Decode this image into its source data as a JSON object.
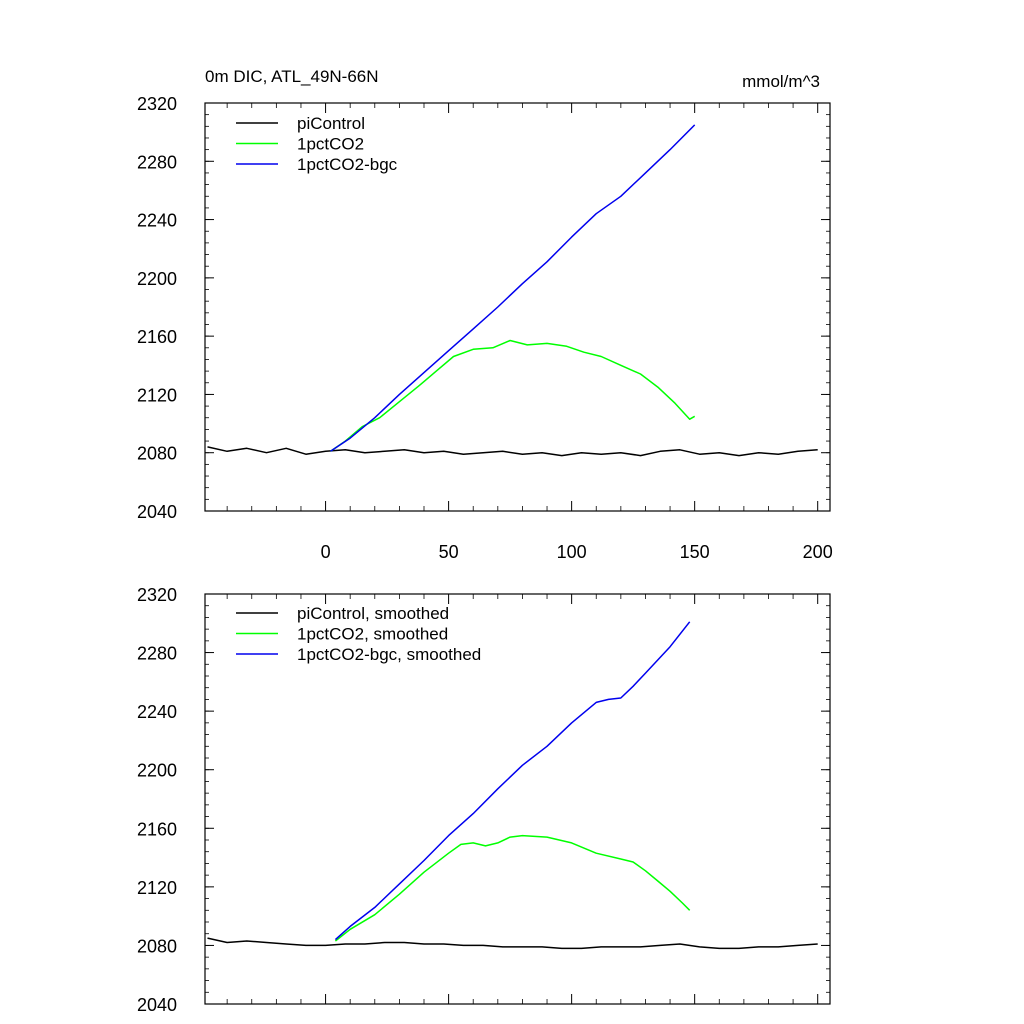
{
  "chart_data": [
    {
      "type": "line",
      "title": "0m DIC, ATL_49N-66N",
      "units": "mmol/m^3",
      "xlim": [
        -49,
        205
      ],
      "ylim": [
        2040,
        2320
      ],
      "yticks": [
        "2040",
        "2080",
        "2120",
        "2160",
        "2200",
        "2240",
        "2280",
        "2320"
      ],
      "xticks": [
        "0",
        "50",
        "100",
        "150",
        "200"
      ],
      "legend_position": "top-left",
      "grid": false,
      "series": [
        {
          "name": "piControl",
          "color": "#000000",
          "x": [
            -48,
            -40,
            -32,
            -24,
            -16,
            -8,
            0,
            8,
            16,
            24,
            32,
            40,
            48,
            56,
            64,
            72,
            80,
            88,
            96,
            104,
            112,
            120,
            128,
            136,
            144,
            152,
            160,
            168,
            176,
            184,
            192,
            200
          ],
          "y": [
            2084,
            2081,
            2083,
            2080,
            2083,
            2079,
            2081,
            2082,
            2080,
            2081,
            2082,
            2080,
            2081,
            2079,
            2080,
            2081,
            2079,
            2080,
            2078,
            2080,
            2079,
            2080,
            2078,
            2081,
            2082,
            2079,
            2080,
            2078,
            2080,
            2079,
            2081,
            2082
          ]
        },
        {
          "name": "1pctCO2",
          "color": "#00ff00",
          "x": [
            2,
            8,
            15,
            22,
            30,
            38,
            45,
            52,
            60,
            68,
            75,
            82,
            90,
            98,
            105,
            112,
            120,
            128,
            135,
            142,
            148,
            150
          ],
          "y": [
            2081,
            2088,
            2098,
            2104,
            2115,
            2126,
            2136,
            2146,
            2151,
            2152,
            2157,
            2154,
            2155,
            2153,
            2149,
            2146,
            2140,
            2134,
            2125,
            2114,
            2103,
            2105
          ]
        },
        {
          "name": "1pctCO2-bgc",
          "color": "#0000ee",
          "x": [
            2,
            10,
            20,
            30,
            40,
            50,
            60,
            70,
            80,
            90,
            100,
            110,
            120,
            130,
            140,
            150
          ],
          "y": [
            2081,
            2090,
            2104,
            2120,
            2135,
            2150,
            2165,
            2180,
            2196,
            2211,
            2228,
            2244,
            2256,
            2272,
            2288,
            2305
          ]
        }
      ]
    },
    {
      "type": "line",
      "xlim": [
        -49,
        205
      ],
      "ylim": [
        2040,
        2320
      ],
      "yticks": [
        "2040",
        "2080",
        "2120",
        "2160",
        "2200",
        "2240",
        "2280",
        "2320"
      ],
      "legend_position": "top-left",
      "grid": false,
      "series": [
        {
          "name": "piControl, smoothed",
          "color": "#000000",
          "x": [
            -48,
            -40,
            -32,
            -24,
            -16,
            -8,
            0,
            8,
            16,
            24,
            32,
            40,
            48,
            56,
            64,
            72,
            80,
            88,
            96,
            104,
            112,
            120,
            128,
            136,
            144,
            152,
            160,
            168,
            176,
            184,
            192,
            200
          ],
          "y": [
            2085,
            2082,
            2083,
            2082,
            2081,
            2080,
            2080,
            2081,
            2081,
            2082,
            2082,
            2081,
            2081,
            2080,
            2080,
            2079,
            2079,
            2079,
            2078,
            2078,
            2079,
            2079,
            2079,
            2080,
            2081,
            2079,
            2078,
            2078,
            2079,
            2079,
            2080,
            2081
          ]
        },
        {
          "name": "1pctCO2, smoothed",
          "color": "#00ff00",
          "x": [
            4,
            10,
            20,
            30,
            40,
            50,
            55,
            60,
            65,
            70,
            75,
            80,
            90,
            100,
            110,
            120,
            125,
            130,
            135,
            140,
            145,
            148
          ],
          "y": [
            2083,
            2091,
            2101,
            2115,
            2130,
            2143,
            2149,
            2150,
            2148,
            2150,
            2154,
            2155,
            2154,
            2150,
            2143,
            2139,
            2137,
            2131,
            2124,
            2117,
            2109,
            2104
          ]
        },
        {
          "name": "1pctCO2-bgc, smoothed",
          "color": "#0000ee",
          "x": [
            4,
            10,
            20,
            30,
            40,
            50,
            60,
            70,
            80,
            90,
            100,
            110,
            115,
            120,
            125,
            130,
            140,
            148
          ],
          "y": [
            2084,
            2093,
            2106,
            2122,
            2138,
            2155,
            2170,
            2187,
            2203,
            2216,
            2232,
            2246,
            2248,
            2249,
            2257,
            2266,
            2284,
            2301
          ]
        }
      ]
    }
  ]
}
